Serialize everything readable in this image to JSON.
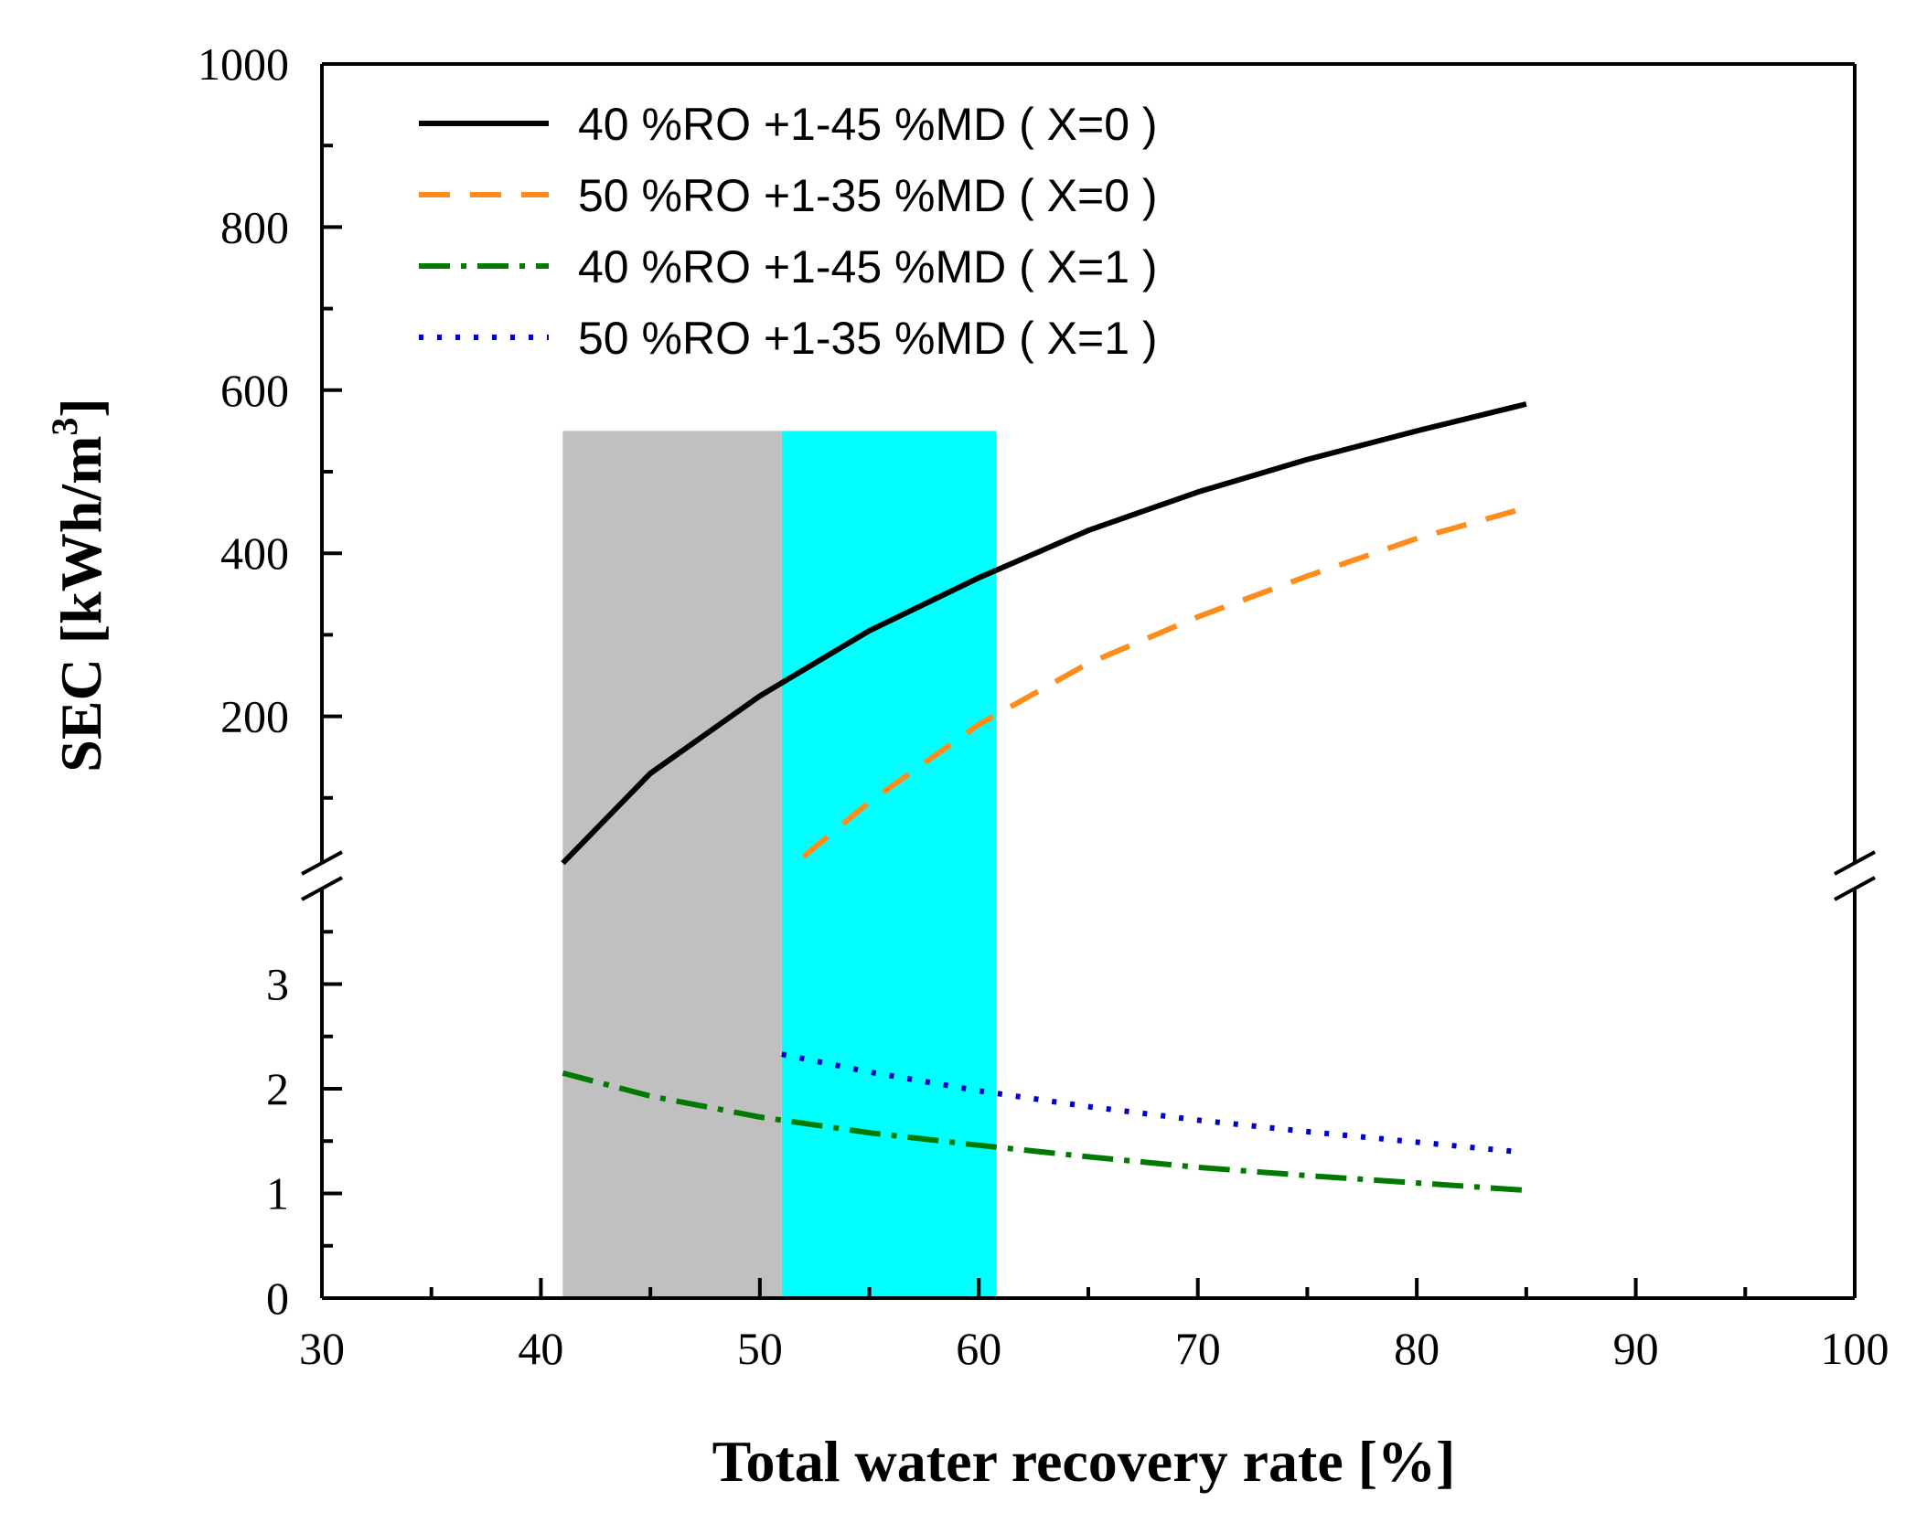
{
  "chart_data": {
    "type": "line",
    "title": "",
    "xlabel": "Total  water recovery rate [%]",
    "ylabel": "SEC [kWh/m",
    "ylabel_superscript": "3",
    "ylabel_close": "]",
    "xlim": [
      30,
      100
    ],
    "x_ticks": [
      "30",
      "40",
      "50",
      "60",
      "70",
      "80",
      "90",
      "100"
    ],
    "y_axis_break": true,
    "lower_ylim": [
      0,
      4
    ],
    "lower_y_ticks": [
      "0",
      "1",
      "2",
      "3"
    ],
    "upper_ylim": [
      0,
      1000
    ],
    "upper_y_ticks": [
      "200",
      "400",
      "600",
      "800",
      "1000"
    ],
    "shaded_regions": [
      {
        "x_start": 41,
        "x_end": 51,
        "color": "#c0c0c0"
      },
      {
        "x_start": 51,
        "x_end": 60.8,
        "color": "#00ffff"
      }
    ],
    "series": [
      {
        "name": "40 %RO +1-45 %MD ( X=0 )",
        "panel": "upper",
        "color": "#000000",
        "style": "solid",
        "x": [
          41,
          45,
          50,
          55,
          60,
          65,
          70,
          75,
          80,
          85
        ],
        "y": [
          20,
          130,
          225,
          305,
          370,
          428,
          475,
          515,
          550,
          583
        ]
      },
      {
        "name": "50 %RO +1-35 %MD ( X=0 )",
        "panel": "upper",
        "color": "#ff8c1a",
        "style": "dashed",
        "x": [
          52,
          55,
          60,
          65,
          70,
          75,
          80,
          84.5
        ],
        "y": [
          28,
          95,
          190,
          265,
          322,
          372,
          418,
          452
        ]
      },
      {
        "name": "40 %RO +1-45 %MD ( X=1 )",
        "panel": "lower",
        "color": "#007a00",
        "style": "dashdot",
        "x": [
          41,
          45,
          50,
          55,
          60,
          65,
          70,
          75,
          80,
          85
        ],
        "y": [
          2.15,
          1.93,
          1.73,
          1.58,
          1.46,
          1.35,
          1.25,
          1.17,
          1.1,
          1.03
        ]
      },
      {
        "name": "50 %RO +1-35 %MD ( X=1 )",
        "panel": "lower",
        "color": "#0000cc",
        "style": "dotted",
        "x": [
          51,
          55,
          60,
          65,
          70,
          75,
          80,
          84.5
        ],
        "y": [
          2.33,
          2.16,
          1.98,
          1.83,
          1.7,
          1.59,
          1.49,
          1.4
        ]
      }
    ],
    "legend_position": "top-left"
  },
  "colors": {
    "background": "#ffffff",
    "axis": "#000000"
  }
}
